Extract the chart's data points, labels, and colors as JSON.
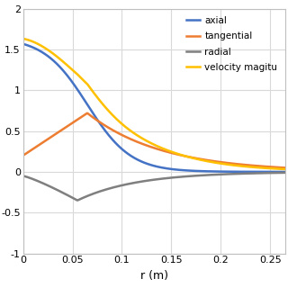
{
  "title": "",
  "xlabel": "r (m)",
  "ylabel": "",
  "xlim": [
    0,
    0.265
  ],
  "ylim": [
    -1.0,
    2.0
  ],
  "yticks": [
    -1.0,
    -0.5,
    0.0,
    0.5,
    1.0,
    1.5,
    2.0
  ],
  "xticks": [
    0,
    0.05,
    0.1,
    0.15,
    0.2,
    0.25
  ],
  "colors": {
    "axial": "#4472C4",
    "tangential": "#ED7D31",
    "radial": "#7f7f7f",
    "velocity_magnitude": "#FFC000"
  },
  "legend": [
    "axial",
    "tangential",
    "radial",
    "velocity magitu"
  ],
  "background": "#ffffff",
  "grid_color": "#d9d9d9"
}
